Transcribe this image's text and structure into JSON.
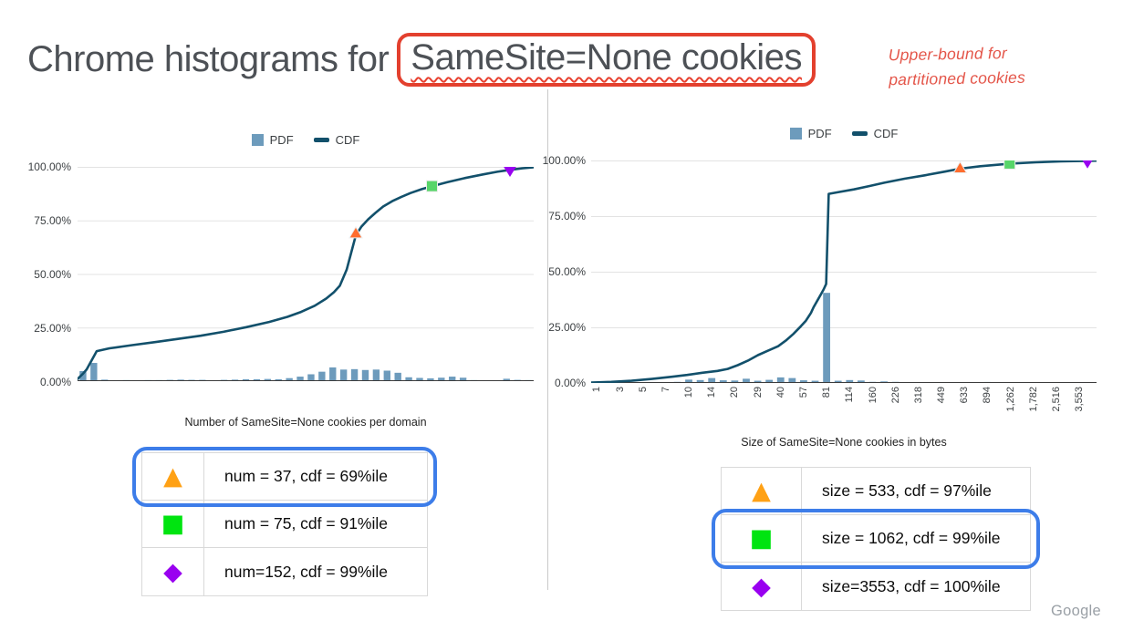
{
  "slide": {
    "title_prefix": "Chrome histograms for",
    "title_boxed": "SameSite=None cookies",
    "annotation_line1": "Upper-bound for",
    "annotation_line2": "partitioned cookies",
    "watermark": "Google"
  },
  "colors": {
    "bar": "#6d9bbc",
    "cdf": "#12506b",
    "grid": "#e3e3e3",
    "baseline": "#3c3c3c",
    "title_box_red": "#e3402e",
    "annotation_red": "#e4564a",
    "highlight_blue": "#3d7de9",
    "table_orange": "#ffa115",
    "table_green": "#00e410",
    "table_purple": "#9900f0"
  },
  "chart_data": [
    {
      "type": "bar",
      "subtype": "histogram-with-cdf",
      "title": "Number of SameSite=None cookies per domain",
      "x_axis_title": "Number of SameSite=None cookies per domain",
      "legend": {
        "pdf": "PDF",
        "cdf": "CDF"
      },
      "legend_position": "top-center",
      "grid": true,
      "ylim": [
        0,
        100
      ],
      "y_tick_labels": [
        "100.00%",
        "75.00%",
        "50.00%",
        "25.00%",
        "0.00%"
      ],
      "x_tick_labels": [],
      "x_tick_indices": [],
      "pdf_values": [
        4.7,
        8.5,
        0.7,
        0.3,
        0.5,
        0.4,
        0.5,
        0.5,
        0.6,
        0.7,
        0.6,
        0.6,
        0.4,
        0.6,
        0.7,
        0.9,
        0.9,
        1.0,
        0.9,
        1.4,
        2.1,
        3.2,
        4.4,
        6.4,
        5.4,
        5.6,
        5.2,
        5.4,
        4.9,
        3.9,
        1.8,
        1.5,
        1.3,
        1.6,
        2.1,
        1.6,
        0.5,
        0.4,
        0.4,
        1.1,
        0.6,
        0.5
      ],
      "cdf_points": [
        [
          0,
          1
        ],
        [
          0.012,
          3.5
        ],
        [
          0.02,
          5.5
        ],
        [
          0.042,
          14
        ],
        [
          0.07,
          15.3
        ],
        [
          0.12,
          16.8
        ],
        [
          0.17,
          18.2
        ],
        [
          0.22,
          19.7
        ],
        [
          0.27,
          21.2
        ],
        [
          0.32,
          23
        ],
        [
          0.37,
          25.2
        ],
        [
          0.42,
          27.6
        ],
        [
          0.46,
          30
        ],
        [
          0.49,
          32.3
        ],
        [
          0.52,
          35.2
        ],
        [
          0.545,
          38.5
        ],
        [
          0.562,
          41.5
        ],
        [
          0.575,
          44.5
        ],
        [
          0.59,
          52
        ],
        [
          0.6,
          60
        ],
        [
          0.61,
          68
        ],
        [
          0.622,
          72
        ],
        [
          0.637,
          75.5
        ],
        [
          0.653,
          78.5
        ],
        [
          0.67,
          81.5
        ],
        [
          0.69,
          84
        ],
        [
          0.71,
          86
        ],
        [
          0.73,
          87.8
        ],
        [
          0.755,
          89.6
        ],
        [
          0.777,
          91
        ],
        [
          0.81,
          92.8
        ],
        [
          0.85,
          94.8
        ],
        [
          0.89,
          96.5
        ],
        [
          0.92,
          97.7
        ],
        [
          0.948,
          98.6
        ],
        [
          0.975,
          99.3
        ],
        [
          1,
          99.8
        ]
      ],
      "markers": [
        {
          "shape": "triangle-up",
          "color": "#ff6d2e",
          "x": 0.61,
          "cdf": 69,
          "value": "num = 37"
        },
        {
          "shape": "square",
          "color": "#57d569",
          "x": 0.777,
          "cdf": 91,
          "value": "num = 75"
        },
        {
          "shape": "triangle-down",
          "color": "#9900f0",
          "x": 0.948,
          "cdf": 98.7,
          "value": "num = 152"
        }
      ],
      "annotation_table": {
        "highlight_row": 0,
        "rows": [
          {
            "glyph": "▲",
            "color": "#ffa115",
            "label": "num = 37, cdf = 69%ile"
          },
          {
            "glyph": "■",
            "color": "#00e410",
            "label": "num = 75, cdf = 91%ile"
          },
          {
            "glyph": "◆",
            "color": "#9900f0",
            "label": "num=152, cdf = 99%ile"
          }
        ]
      }
    },
    {
      "type": "bar",
      "subtype": "histogram-with-cdf",
      "title": "Size of SameSite=None cookies in bytes",
      "x_axis_title": "Size of SameSite=None cookies in bytes",
      "legend": {
        "pdf": "PDF",
        "cdf": "CDF"
      },
      "legend_position": "top-center",
      "grid": true,
      "ylim": [
        0,
        100
      ],
      "y_tick_labels": [
        "100.00%",
        "75.00%",
        "50.00%",
        "25.00%",
        "0.00%"
      ],
      "x_tick_labels": [
        "1",
        "3",
        "5",
        "7",
        "10",
        "14",
        "20",
        "29",
        "40",
        "57",
        "81",
        "114",
        "160",
        "226",
        "318",
        "449",
        "633",
        "894",
        "1,262",
        "1,782",
        "2,516",
        "3,553"
      ],
      "x_tick_indices": [
        0,
        2,
        4,
        6,
        8,
        10,
        12,
        14,
        16,
        18,
        20,
        22,
        24,
        26,
        28,
        30,
        32,
        34,
        36,
        38,
        40,
        42
      ],
      "pdf_values": [
        0.15,
        0.2,
        0.15,
        0.2,
        0.25,
        0.3,
        0.35,
        0.5,
        1.5,
        1.3,
        2.2,
        1.2,
        1.1,
        1.9,
        1.0,
        1.4,
        2.5,
        2.2,
        1.2,
        1.0,
        40.5,
        1.0,
        1.3,
        1.1,
        0.5,
        0.7,
        0.5,
        0.3,
        0.25,
        0.2,
        0.15,
        0.15,
        0.2,
        0.15,
        0.45,
        0.15,
        0.1,
        0.1,
        0.3,
        0.1,
        0.3,
        0.1,
        0.15,
        0.1
      ],
      "cdf_points": [
        [
          0,
          0.2
        ],
        [
          0.04,
          0.5
        ],
        [
          0.08,
          1.0
        ],
        [
          0.12,
          1.8
        ],
        [
          0.16,
          2.8
        ],
        [
          0.19,
          3.6
        ],
        [
          0.22,
          4.6
        ],
        [
          0.25,
          5.4
        ],
        [
          0.27,
          6.3
        ],
        [
          0.29,
          8
        ],
        [
          0.31,
          10
        ],
        [
          0.33,
          12.5
        ],
        [
          0.35,
          14.5
        ],
        [
          0.37,
          16.5
        ],
        [
          0.385,
          19
        ],
        [
          0.4,
          22
        ],
        [
          0.415,
          25.5
        ],
        [
          0.425,
          28
        ],
        [
          0.435,
          31.5
        ],
        [
          0.44,
          34
        ],
        [
          0.445,
          36
        ],
        [
          0.45,
          38
        ],
        [
          0.455,
          40
        ],
        [
          0.46,
          42
        ],
        [
          0.465,
          44.5
        ],
        [
          0.47,
          85
        ],
        [
          0.49,
          85.8
        ],
        [
          0.52,
          87
        ],
        [
          0.55,
          88.5
        ],
        [
          0.58,
          90
        ],
        [
          0.62,
          91.8
        ],
        [
          0.66,
          93.3
        ],
        [
          0.7,
          95
        ],
        [
          0.73,
          96.3
        ],
        [
          0.77,
          97.4
        ],
        [
          0.83,
          98.6
        ],
        [
          0.88,
          99.2
        ],
        [
          0.93,
          99.6
        ],
        [
          0.98,
          99.8
        ],
        [
          1,
          99.9
        ]
      ],
      "markers": [
        {
          "shape": "triangle-up",
          "color": "#ff6d2e",
          "x": 0.73,
          "cdf": 96.5,
          "value": "size = 533"
        },
        {
          "shape": "square",
          "color": "#57d569",
          "x": 0.828,
          "cdf": 98.6,
          "value": "size = 1062"
        },
        {
          "shape": "triangle-down",
          "color": "#9900f0",
          "x": 0.982,
          "cdf": 99.7,
          "value": "size = 3553"
        }
      ],
      "annotation_table": {
        "highlight_row": 1,
        "rows": [
          {
            "glyph": "▲",
            "color": "#ffa115",
            "label": "size = 533, cdf = 97%ile"
          },
          {
            "glyph": "■",
            "color": "#00e410",
            "label": "size = 1062, cdf = 99%ile"
          },
          {
            "glyph": "◆",
            "color": "#9900f0",
            "label": "size=3553, cdf = 100%ile"
          }
        ]
      }
    }
  ]
}
